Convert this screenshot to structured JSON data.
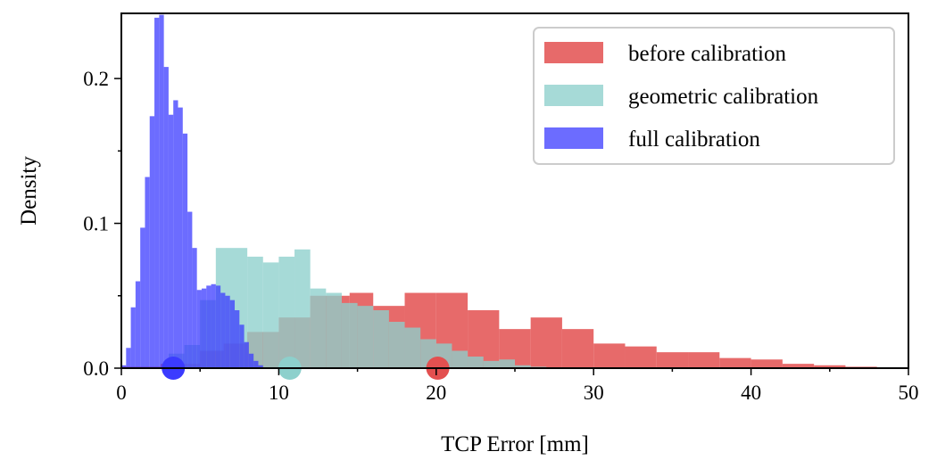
{
  "chart_data": {
    "type": "histogram",
    "title": "",
    "xlabel": "TCP Error [mm]",
    "ylabel": "Density",
    "xlim": [
      0,
      50
    ],
    "ylim": [
      0,
      0.245
    ],
    "xticks": [
      0,
      10,
      20,
      30,
      40,
      50
    ],
    "xtick_labels": [
      "0",
      "10",
      "20",
      "30",
      "40",
      "50"
    ],
    "yticks": [
      0.0,
      0.1,
      0.2
    ],
    "ytick_labels": [
      "0.0",
      "0.1",
      "0.2"
    ],
    "grid": false,
    "legend_position": "top-right",
    "series": [
      {
        "name": "before calibration",
        "color": "#e35050",
        "opacity": 0.85,
        "mean": 20.1,
        "bins": [
          [
            0,
            2.5,
            0.001
          ],
          [
            2.5,
            5,
            0.003
          ],
          [
            5,
            6.5,
            0.012
          ],
          [
            6.5,
            8,
            0.017
          ],
          [
            8,
            10,
            0.025
          ],
          [
            10,
            12,
            0.035
          ],
          [
            12,
            14.5,
            0.05
          ],
          [
            14.5,
            16,
            0.052
          ],
          [
            16,
            18,
            0.043
          ],
          [
            18,
            20,
            0.052
          ],
          [
            20,
            22,
            0.052
          ],
          [
            22,
            24,
            0.04
          ],
          [
            24,
            26,
            0.027
          ],
          [
            26,
            28,
            0.035
          ],
          [
            28,
            30,
            0.027
          ],
          [
            30,
            32,
            0.017
          ],
          [
            32,
            34,
            0.015
          ],
          [
            34,
            36,
            0.011
          ],
          [
            36,
            38,
            0.011
          ],
          [
            38,
            40,
            0.007
          ],
          [
            40,
            42,
            0.006
          ],
          [
            42,
            44,
            0.003
          ],
          [
            44,
            46,
            0.002
          ],
          [
            46,
            48,
            0.001
          ]
        ]
      },
      {
        "name": "geometric calibration",
        "color": "#8dd0cc",
        "opacity": 0.78,
        "mean": 10.7,
        "bins": [
          [
            3,
            4,
            0.01
          ],
          [
            4,
            5,
            0.016
          ],
          [
            5,
            6,
            0.047
          ],
          [
            6,
            7,
            0.083
          ],
          [
            7,
            8,
            0.083
          ],
          [
            8,
            9,
            0.077
          ],
          [
            9,
            10,
            0.073
          ],
          [
            10,
            11,
            0.077
          ],
          [
            11,
            12,
            0.082
          ],
          [
            12,
            13,
            0.055
          ],
          [
            13,
            14,
            0.052
          ],
          [
            14,
            15,
            0.045
          ],
          [
            15,
            16,
            0.043
          ],
          [
            16,
            17,
            0.04
          ],
          [
            17,
            18,
            0.032
          ],
          [
            18,
            19,
            0.028
          ],
          [
            19,
            20,
            0.02
          ],
          [
            20,
            21,
            0.017
          ],
          [
            21,
            22,
            0.012
          ],
          [
            22,
            23,
            0.008
          ],
          [
            23,
            24,
            0.005
          ],
          [
            24,
            25,
            0.006
          ],
          [
            25,
            26,
            0.002
          ],
          [
            26,
            27,
            0.001
          ]
        ]
      },
      {
        "name": "full calibration",
        "color": "#3b3bff",
        "opacity": 0.75,
        "mean": 3.3,
        "bins": [
          [
            0,
            0.3,
            0.002
          ],
          [
            0.3,
            0.6,
            0.014
          ],
          [
            0.6,
            0.9,
            0.042
          ],
          [
            0.9,
            1.2,
            0.06
          ],
          [
            1.2,
            1.5,
            0.097
          ],
          [
            1.5,
            1.8,
            0.132
          ],
          [
            1.8,
            2.1,
            0.174
          ],
          [
            2.1,
            2.4,
            0.242
          ],
          [
            2.4,
            2.7,
            0.244
          ],
          [
            2.7,
            3.0,
            0.208
          ],
          [
            3.0,
            3.3,
            0.175
          ],
          [
            3.3,
            3.6,
            0.185
          ],
          [
            3.6,
            3.9,
            0.18
          ],
          [
            3.9,
            4.2,
            0.162
          ],
          [
            4.2,
            4.5,
            0.108
          ],
          [
            4.5,
            4.8,
            0.083
          ],
          [
            4.8,
            5.1,
            0.054
          ],
          [
            5.1,
            5.4,
            0.055
          ],
          [
            5.4,
            5.7,
            0.057
          ],
          [
            5.7,
            6.0,
            0.058
          ],
          [
            6.0,
            6.3,
            0.057
          ],
          [
            6.3,
            6.6,
            0.052
          ],
          [
            6.6,
            6.9,
            0.05
          ],
          [
            6.9,
            7.2,
            0.047
          ],
          [
            7.2,
            7.5,
            0.04
          ],
          [
            7.5,
            7.8,
            0.03
          ],
          [
            7.8,
            8.1,
            0.018
          ],
          [
            8.1,
            8.4,
            0.01
          ],
          [
            8.4,
            8.7,
            0.005
          ],
          [
            8.7,
            9.0,
            0.002
          ]
        ]
      }
    ]
  }
}
